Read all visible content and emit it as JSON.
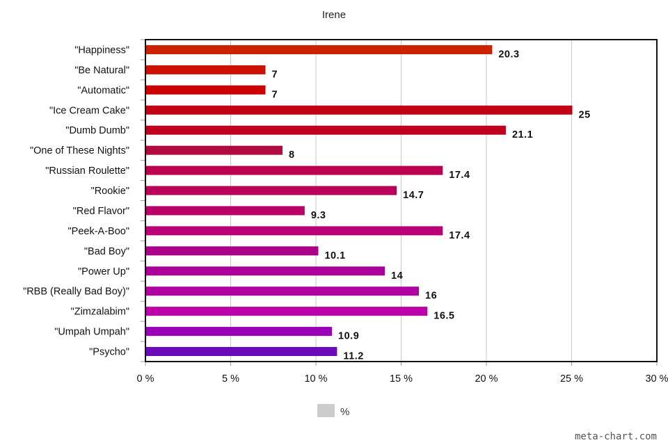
{
  "chart_data": {
    "type": "bar",
    "orientation": "horizontal",
    "title": "Irene",
    "categories": [
      "\"Happiness\"",
      "\"Be Natural\"",
      "\"Automatic\"",
      "\"Ice Cream Cake\"",
      "\"Dumb Dumb\"",
      "\"One of These Nights\"",
      "\"Russian Roulette\"",
      "\"Rookie\"",
      "\"Red Flavor\"",
      "\"Peek-A-Boo\"",
      "\"Bad Boy\"",
      "\"Power Up\"",
      "\"RBB (Really Bad Boy)\"",
      "\"Zimzalabim\"",
      "\"Umpah Umpah\"",
      "\"Psycho\""
    ],
    "series": [
      {
        "name": "%",
        "values": [
          20.3,
          7,
          7,
          25,
          21.1,
          8,
          17.4,
          14.7,
          9.3,
          17.4,
          10.1,
          14,
          16,
          16.5,
          10.9,
          11.2
        ],
        "labels": [
          "20.3",
          "7",
          "7",
          "25",
          "21.1",
          "8",
          "17.4",
          "14.7",
          "9.3",
          "17.4",
          "10.1",
          "14",
          "16",
          "16.5",
          "10.9",
          "11.2"
        ]
      }
    ],
    "bar_colors": [
      "#cc2200",
      "#cc1100",
      "#cc0000",
      "#c20014",
      "#c0001e",
      "#b00a40",
      "#bb0050",
      "#b8005a",
      "#b80066",
      "#bb0077",
      "#aa0088",
      "#aa0099",
      "#b000a0",
      "#bb00aa",
      "#9a00b8",
      "#6a0ab8"
    ],
    "xlim": [
      0,
      30
    ],
    "x_ticks": [
      0,
      5,
      10,
      15,
      20,
      25,
      30
    ],
    "x_tick_labels": [
      "0 %",
      "5 %",
      "10 %",
      "15 %",
      "20 %",
      "25 %",
      "30 %"
    ],
    "xlabel": "",
    "ylabel": "",
    "grid": true,
    "legend": {
      "position": "bottom",
      "label": "%",
      "swatch_color": "#cccccc"
    },
    "credit": "meta-chart.com"
  }
}
